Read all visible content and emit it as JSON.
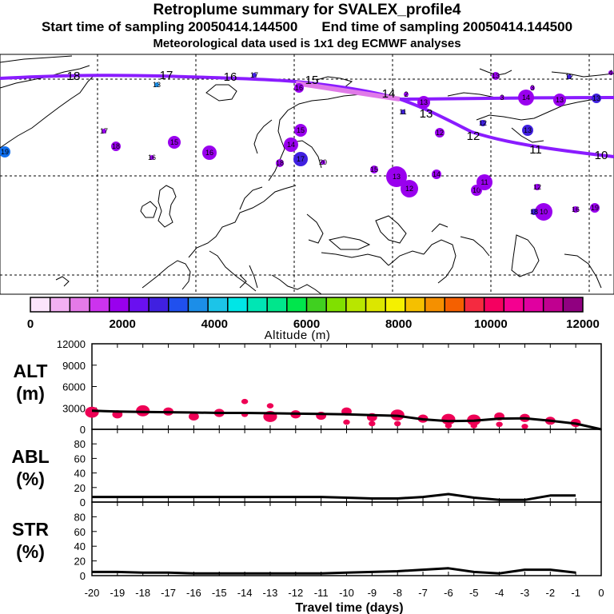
{
  "header": {
    "title": "Retroplume summary for SVALEX_profile4",
    "start_label": "Start time of sampling 20050414.144500",
    "end_label": "End time of sampling 20050414.144500",
    "met_label": "Meteorological data used is 1x1 deg ECMWF analyses"
  },
  "chart_data": [
    {
      "type": "map",
      "description_label": "retroplume trajectory map",
      "track_labels": [
        "18",
        "17",
        "16",
        "15",
        "14",
        "13",
        "12",
        "11",
        "10"
      ],
      "cluster_labels": [
        {
          "label": "19",
          "color": "#1070f0"
        },
        {
          "label": "17",
          "color": "#9900ee"
        },
        {
          "label": "18",
          "color": "#9900ee"
        },
        {
          "label": "16",
          "color": "#9900ee"
        },
        {
          "label": "15",
          "color": "#9900ee"
        },
        {
          "label": "13",
          "color": "#1a8ee8"
        },
        {
          "label": "16",
          "color": "#9900ee"
        },
        {
          "label": "17",
          "color": "#4020e0"
        },
        {
          "label": "16",
          "color": "#9900ee"
        },
        {
          "label": "15",
          "color": "#9900ee"
        },
        {
          "label": "14",
          "color": "#9900ee"
        },
        {
          "label": "18",
          "color": "#9900ee"
        },
        {
          "label": "17",
          "color": "#4020e0"
        },
        {
          "label": "20",
          "color": "#9900ee"
        },
        {
          "label": "15",
          "color": "#9900ee"
        },
        {
          "label": "13",
          "color": "#9900ee"
        },
        {
          "label": "12",
          "color": "#9900ee"
        },
        {
          "label": "14",
          "color": "#9900ee"
        },
        {
          "label": "11",
          "color": "#4020e0"
        },
        {
          "label": "13",
          "color": "#9900ee"
        },
        {
          "label": "12",
          "color": "#9900ee"
        },
        {
          "label": "10",
          "color": "#9900ee"
        },
        {
          "label": "11",
          "color": "#9900ee"
        },
        {
          "label": "12",
          "color": "#4020e0"
        },
        {
          "label": "13",
          "color": "#4020e0"
        },
        {
          "label": "14",
          "color": "#9900ee"
        },
        {
          "label": "13",
          "color": "#9900ee"
        },
        {
          "label": "2",
          "color": "#9900ee"
        },
        {
          "label": "3",
          "color": "#9900ee"
        },
        {
          "label": "3",
          "color": "#9900ee"
        },
        {
          "label": "13",
          "color": "#4020e0"
        },
        {
          "label": "4",
          "color": "#9900ee"
        },
        {
          "label": "12",
          "color": "#4020e0"
        },
        {
          "label": "13",
          "color": "#9900ee"
        },
        {
          "label": "12",
          "color": "#9900ee"
        },
        {
          "label": "10",
          "color": "#9900ee"
        },
        {
          "label": "18",
          "color": "#4020e0"
        },
        {
          "label": "16",
          "color": "#9900ee"
        },
        {
          "label": "19",
          "color": "#9900ee"
        }
      ]
    },
    {
      "type": "colorbar",
      "ticks": [
        0,
        2000,
        4000,
        6000,
        8000,
        10000,
        12000
      ],
      "tick_labels": [
        "0",
        "2000",
        "4000",
        "6000",
        "8000",
        "10000",
        "12000"
      ],
      "xlabel": "Altitude (m)",
      "colors": [
        "#fbe4fb",
        "#f2b0f2",
        "#e47ae8",
        "#cc33ee",
        "#9900ee",
        "#6a10f0",
        "#4020e0",
        "#2050ee",
        "#1c8ee8",
        "#1cc4e8",
        "#00e6e6",
        "#00e6b4",
        "#00e68c",
        "#00e64c",
        "#40d020",
        "#80e000",
        "#b8e600",
        "#dce600",
        "#f5f000",
        "#f5c000",
        "#f59000",
        "#f56000",
        "#f52a40",
        "#f50060",
        "#f50090",
        "#e000a0",
        "#c00090",
        "#900080"
      ]
    },
    {
      "type": "line",
      "ylabel_top": "ALT",
      "ylabel_bottom": "(m)",
      "ylim": [
        0,
        12000
      ],
      "yticks": [
        0,
        3000,
        6000,
        9000,
        12000
      ],
      "ytick_labels": [
        "0",
        "3000",
        "6000",
        "9000",
        "12000"
      ],
      "series": [
        {
          "name": "mean altitude",
          "x": [
            -20,
            -19,
            -18,
            -17,
            -16,
            -15,
            -14,
            -13,
            -12,
            -11,
            -10,
            -9,
            -8,
            -7,
            -6,
            -5,
            -4,
            -3,
            -2,
            -1,
            0
          ],
          "y": [
            2600,
            2500,
            2450,
            2400,
            2350,
            2300,
            2300,
            2250,
            2200,
            2150,
            2100,
            2000,
            1900,
            1400,
            1150,
            1200,
            1500,
            1550,
            1200,
            800,
            0
          ]
        }
      ],
      "scatter": {
        "name": "altitude clusters",
        "color": "#ee0055",
        "x": [
          -20,
          -19,
          -18,
          -17,
          -16,
          -15,
          -14,
          -14,
          -13,
          -13,
          -12,
          -11,
          -10,
          -10,
          -9,
          -9,
          -8,
          -8,
          -7,
          -6,
          -6,
          -5,
          -5,
          -4,
          -4,
          -3,
          -3,
          -2,
          -1
        ],
        "y": [
          2400,
          2100,
          2600,
          2500,
          1800,
          2300,
          2100,
          3900,
          1800,
          3300,
          2100,
          1900,
          2500,
          1000,
          1700,
          800,
          2000,
          800,
          1500,
          1400,
          500,
          1300,
          500,
          1800,
          700,
          1600,
          400,
          1200,
          900
        ],
        "size": [
          3,
          2,
          3,
          2,
          2,
          2,
          1,
          1,
          3,
          1,
          2,
          2,
          2,
          1,
          2,
          1,
          3,
          1,
          2,
          3,
          1,
          3,
          1,
          2,
          1,
          2,
          1,
          2,
          2
        ]
      }
    },
    {
      "type": "line",
      "ylabel_top": "ABL",
      "ylabel_bottom": "(%)",
      "ylim": [
        0,
        100
      ],
      "yticks": [
        0,
        20,
        40,
        60,
        80
      ],
      "ytick_labels": [
        "0",
        "20",
        "40",
        "60",
        "80"
      ],
      "series": [
        {
          "name": "ABL fraction",
          "x": [
            -20,
            -19,
            -18,
            -17,
            -16,
            -15,
            -14,
            -13,
            -12,
            -11,
            -10,
            -9,
            -8,
            -7,
            -6,
            -5,
            -4,
            -3,
            -2,
            -1
          ],
          "y": [
            7,
            7,
            7,
            7,
            7,
            7,
            7,
            7,
            7,
            7,
            6,
            5,
            5,
            7,
            11,
            6,
            3,
            3,
            9,
            9
          ]
        }
      ]
    },
    {
      "type": "line",
      "ylabel_top": "STR",
      "ylabel_bottom": "(%)",
      "ylim": [
        0,
        100
      ],
      "yticks": [
        0,
        20,
        40,
        60,
        80
      ],
      "ytick_labels": [
        "0",
        "20",
        "40",
        "60",
        "80"
      ],
      "xlabel": "Travel time (days)",
      "xlim": [
        -20,
        0
      ],
      "xticks": [
        -20,
        -19,
        -18,
        -17,
        -16,
        -15,
        -14,
        -13,
        -12,
        -11,
        -10,
        -9,
        -8,
        -7,
        -6,
        -5,
        -4,
        -3,
        -2,
        -1,
        0
      ],
      "xtick_labels": [
        "-20",
        "-19",
        "-18",
        "-17",
        "-16",
        "-15",
        "-14",
        "-13",
        "-12",
        "-11",
        "-10",
        "-9",
        "-8",
        "-7",
        "-6",
        "-5",
        "-4",
        "-3",
        "-2",
        "-1",
        "0"
      ],
      "series": [
        {
          "name": "stratospheric fraction",
          "x": [
            -20,
            -19,
            -18,
            -17,
            -16,
            -15,
            -14,
            -13,
            -12,
            -11,
            -10,
            -9,
            -8,
            -7,
            -6,
            -5,
            -4,
            -3,
            -2,
            -1
          ],
          "y": [
            5,
            5,
            4,
            4,
            3,
            3,
            3,
            3,
            3,
            3,
            4,
            5,
            6,
            8,
            10,
            5,
            3,
            8,
            8,
            4
          ]
        }
      ]
    }
  ]
}
